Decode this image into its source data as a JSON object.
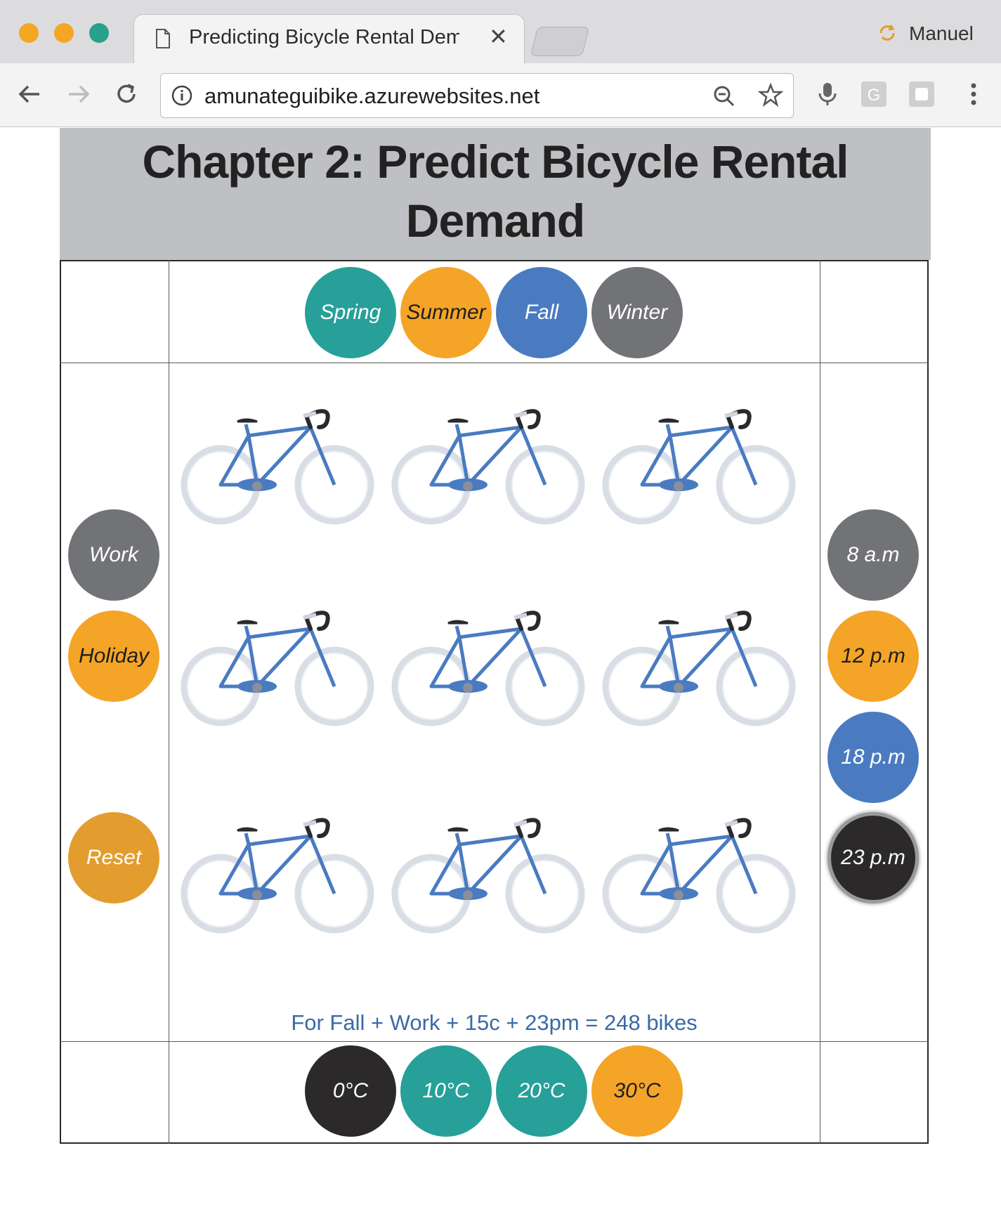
{
  "browser": {
    "tab_title": "Predicting Bicycle Rental Demand",
    "profile_name": "Manuel",
    "url": "amunateguibike.azurewebsites.net",
    "traffic_lights": [
      "#f5a623",
      "#f5a623",
      "#28a08a"
    ]
  },
  "page": {
    "title_line1": "Chapter 2: Predict Bicycle Rental",
    "title_line2": "Demand"
  },
  "seasons": [
    {
      "label": "Spring",
      "color": "#26a098",
      "text_color": "#ffffff"
    },
    {
      "label": "Summer",
      "color": "#f4a427",
      "text_color": "#1e1e1e"
    },
    {
      "label": "Fall",
      "color": "#4a7bc1",
      "text_color": "#ffffff"
    },
    {
      "label": "Winter",
      "color": "#727376",
      "text_color": "#ffffff"
    }
  ],
  "day_types": [
    {
      "label": "Work",
      "color": "#727376",
      "text_color": "#ffffff"
    },
    {
      "label": "Holiday",
      "color": "#f4a427",
      "text_color": "#1e1e1e"
    }
  ],
  "reset": {
    "label": "Reset",
    "color": "#e39d2e",
    "text_color": "#ffffff"
  },
  "hours": [
    {
      "label": "8 a.m",
      "color": "#727376",
      "text_color": "#ffffff"
    },
    {
      "label": "12 p.m",
      "color": "#f4a427",
      "text_color": "#1e1e1e"
    },
    {
      "label": "18 p.m",
      "color": "#4a7bc1",
      "text_color": "#ffffff"
    },
    {
      "label": "23 p.m",
      "color": "#2b2929",
      "text_color": "#ffffff",
      "selected": true
    }
  ],
  "temperatures": [
    {
      "label": "0°C",
      "color": "#2b2929",
      "text_color": "#ffffff"
    },
    {
      "label": "10°C",
      "color": "#26a098",
      "text_color": "#ffffff"
    },
    {
      "label": "20°C",
      "color": "#26a098",
      "text_color": "#ffffff"
    },
    {
      "label": "30°C",
      "color": "#f4a427",
      "text_color": "#1e1e1e"
    }
  ],
  "bikes": {
    "count": 9,
    "frame_color": "#4a7bc1",
    "wheel_color": "#d9dde6"
  },
  "result_text": "For Fall + Work + 15c + 23pm = 248 bikes"
}
